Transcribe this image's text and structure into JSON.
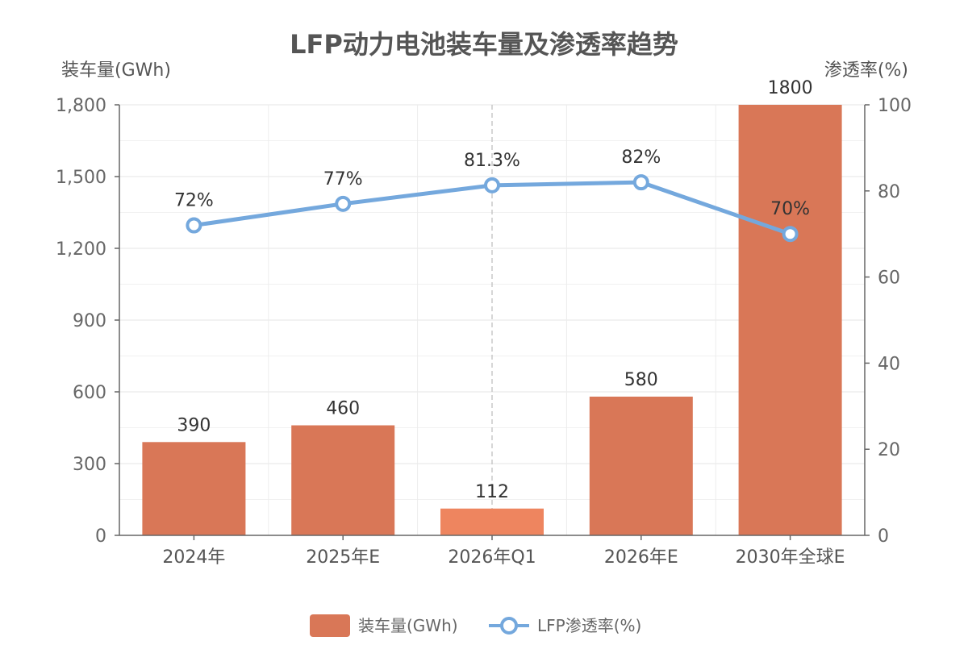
{
  "chart_data": {
    "type": "bar",
    "title": "LFP动力电池装车量及渗透率趋势",
    "categories": [
      "2024年",
      "2025年E",
      "2026年Q1",
      "2026年E",
      "2030年全球E"
    ],
    "y_left": {
      "label": "装车量(GWh)",
      "range": [
        0,
        1800
      ],
      "ticks": [
        0,
        300,
        600,
        900,
        1200,
        1500,
        1800
      ],
      "tick_labels": [
        "0",
        "300",
        "600",
        "900",
        "1,200",
        "1,500",
        "1,800"
      ]
    },
    "y_right": {
      "label": "渗透率(%)",
      "range": [
        0,
        100
      ],
      "ticks": [
        0,
        20,
        40,
        60,
        80,
        100
      ],
      "tick_labels": [
        "0",
        "20",
        "40",
        "60",
        "80",
        "100"
      ]
    },
    "series": [
      {
        "name": "装车量(GWh)",
        "type": "bar",
        "axis": "left",
        "values": [
          390,
          460,
          112,
          580,
          1800
        ],
        "labels": [
          "390",
          "460",
          "112",
          "580",
          "1800"
        ],
        "color": "#D97757",
        "highlight_color": "#EE855F",
        "highlight_index": 2
      },
      {
        "name": "LFP渗透率(%)",
        "type": "line",
        "axis": "right",
        "values": [
          72,
          77,
          81.3,
          82,
          70
        ],
        "labels": [
          "72%",
          "77%",
          "81.3%",
          "82%",
          "70%"
        ],
        "color": "#74A8DD"
      }
    ],
    "reference_line_category": "2026年Q1",
    "grid": true,
    "legend_position": "bottom"
  }
}
